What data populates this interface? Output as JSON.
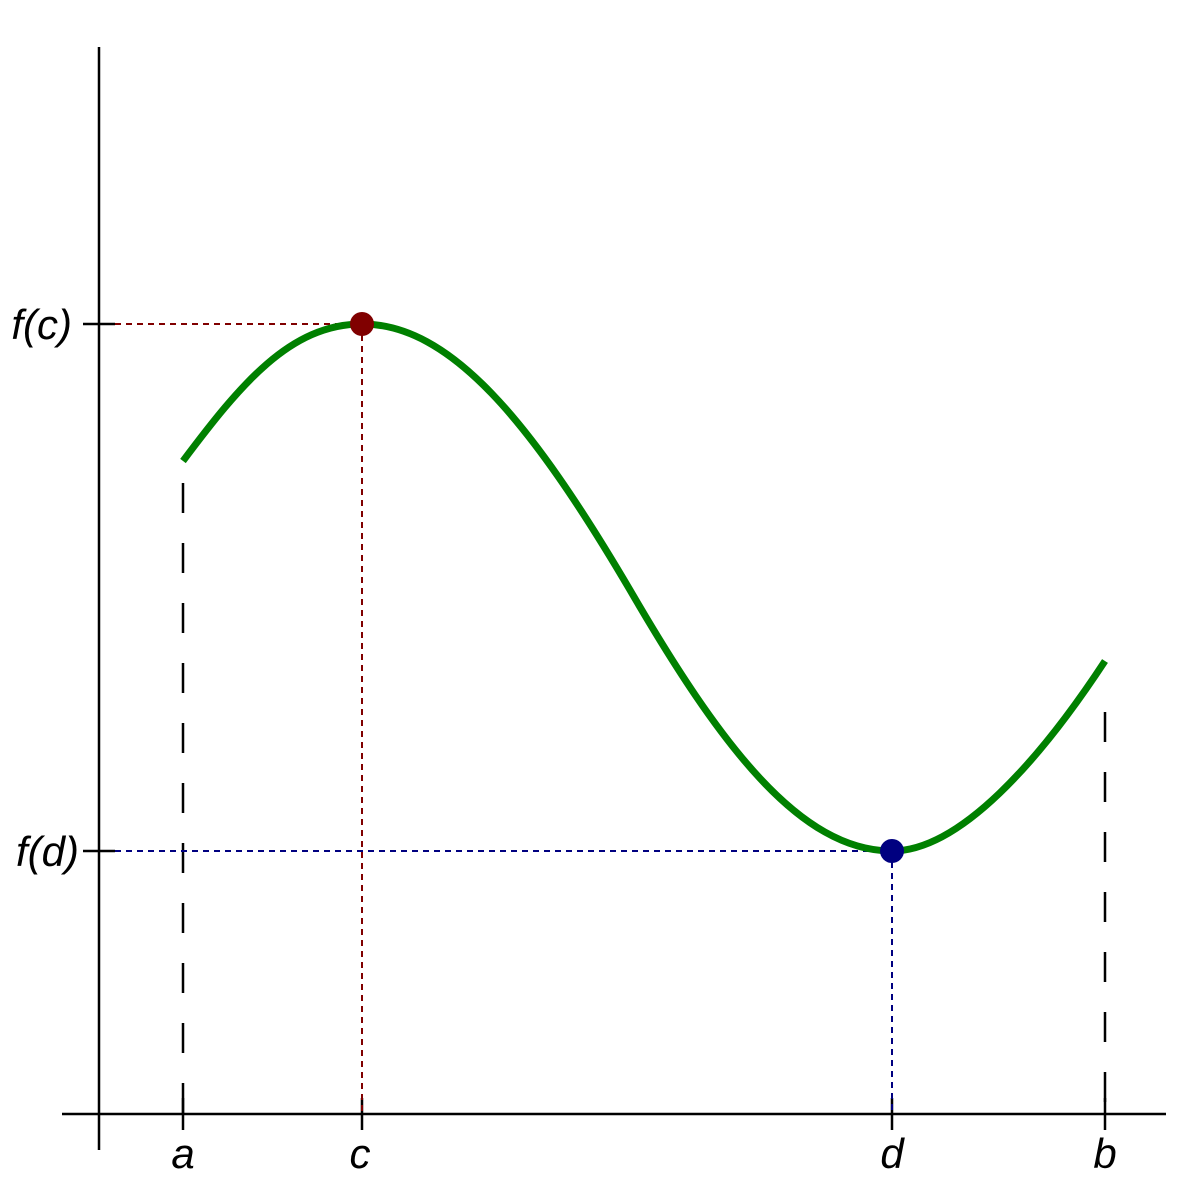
{
  "x_labels": [
    "a",
    "c",
    "d",
    "b"
  ],
  "y_labels": [
    "f(c)",
    "f(d)"
  ]
}
